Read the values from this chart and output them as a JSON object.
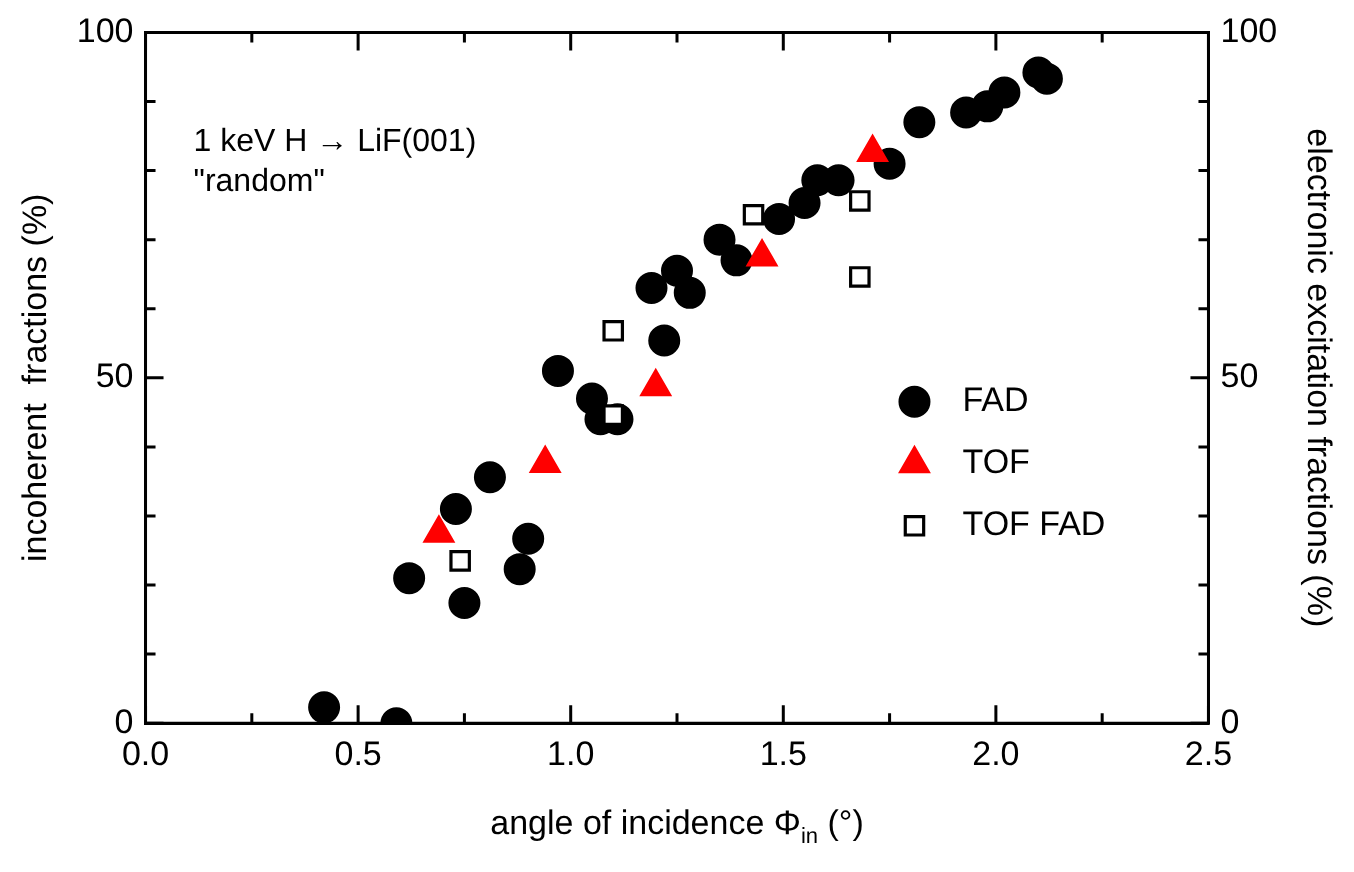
{
  "chart_data": {
    "type": "scatter",
    "xlabel": "angle of incidence Φ$_{in}$ (°)",
    "ylabel": "incoherent  fractions (%)",
    "y2label": "electronic excitation fractions (%)",
    "annotations": [
      "1 keV H → LiF(001)",
      "\"random\""
    ],
    "xlim": [
      0,
      2.5
    ],
    "xticks": [
      {
        "value": 0,
        "label": "0.0"
      },
      {
        "value": 0.5,
        "label": "0.5"
      },
      {
        "value": 1,
        "label": "1.0"
      },
      {
        "value": 1.5,
        "label": "1.5"
      },
      {
        "value": 2,
        "label": "2.0"
      },
      {
        "value": 2.5,
        "label": "2.5"
      }
    ],
    "ylim": [
      0,
      100
    ],
    "yticks": [
      0,
      50,
      100
    ],
    "y2lim": [
      0,
      100
    ],
    "y2ticks": [
      0,
      50,
      100
    ],
    "grid": false,
    "legend": "right",
    "series": [
      {
        "name": "FAD",
        "color": "#000000",
        "marker": "circle",
        "x": [
          0.42,
          0.59,
          0.62,
          0.73,
          0.75,
          0.81,
          0.88,
          0.9,
          0.97,
          1.05,
          1.07,
          1.11,
          1.22,
          1.19,
          1.25,
          1.28,
          1.35,
          1.39,
          1.49,
          1.55,
          1.58,
          1.63,
          1.75,
          1.82,
          1.93,
          1.98,
          2.02,
          2.1,
          2.12
        ],
        "values": [
          2.3,
          0,
          21,
          31,
          17.4,
          35.6,
          22.3,
          26.7,
          51,
          47,
          44,
          44,
          55.4,
          63,
          65.5,
          62.3,
          70,
          67,
          73,
          75.3,
          78.6,
          78.6,
          81,
          87,
          88.4,
          89.3,
          91.3,
          94.2,
          93.3
        ]
      },
      {
        "name": "TOF",
        "color": "#ff0000",
        "marker": "triangle",
        "x": [
          0.69,
          0.94,
          1.2,
          1.45,
          1.71
        ],
        "values": [
          27.5,
          37.6,
          48.7,
          67.5,
          82.6
        ]
      },
      {
        "name": "TOF FAD",
        "color": "#000000",
        "marker": "square",
        "x": [
          0.74,
          1.1,
          1.1,
          1.43,
          1.68,
          1.68
        ],
        "values": [
          23.5,
          56.8,
          44.6,
          73.6,
          75.6,
          64.6
        ]
      }
    ]
  }
}
